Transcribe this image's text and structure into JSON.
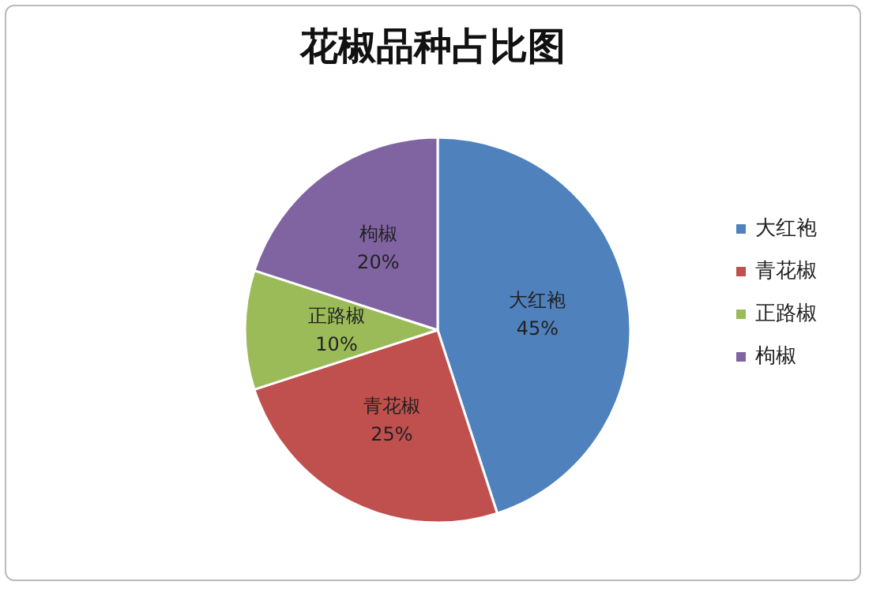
{
  "chart_data": {
    "type": "pie",
    "title": "花椒品种占比图",
    "categories": [
      "大红袍",
      "青花椒",
      "正路椒",
      "枸椒"
    ],
    "values": [
      45,
      25,
      10,
      20
    ],
    "colors": [
      "#4f81bd",
      "#c0504d",
      "#9bbb59",
      "#8064a2"
    ],
    "value_labels": [
      "45%",
      "25%",
      "10%",
      "20%"
    ],
    "legend": "right"
  }
}
